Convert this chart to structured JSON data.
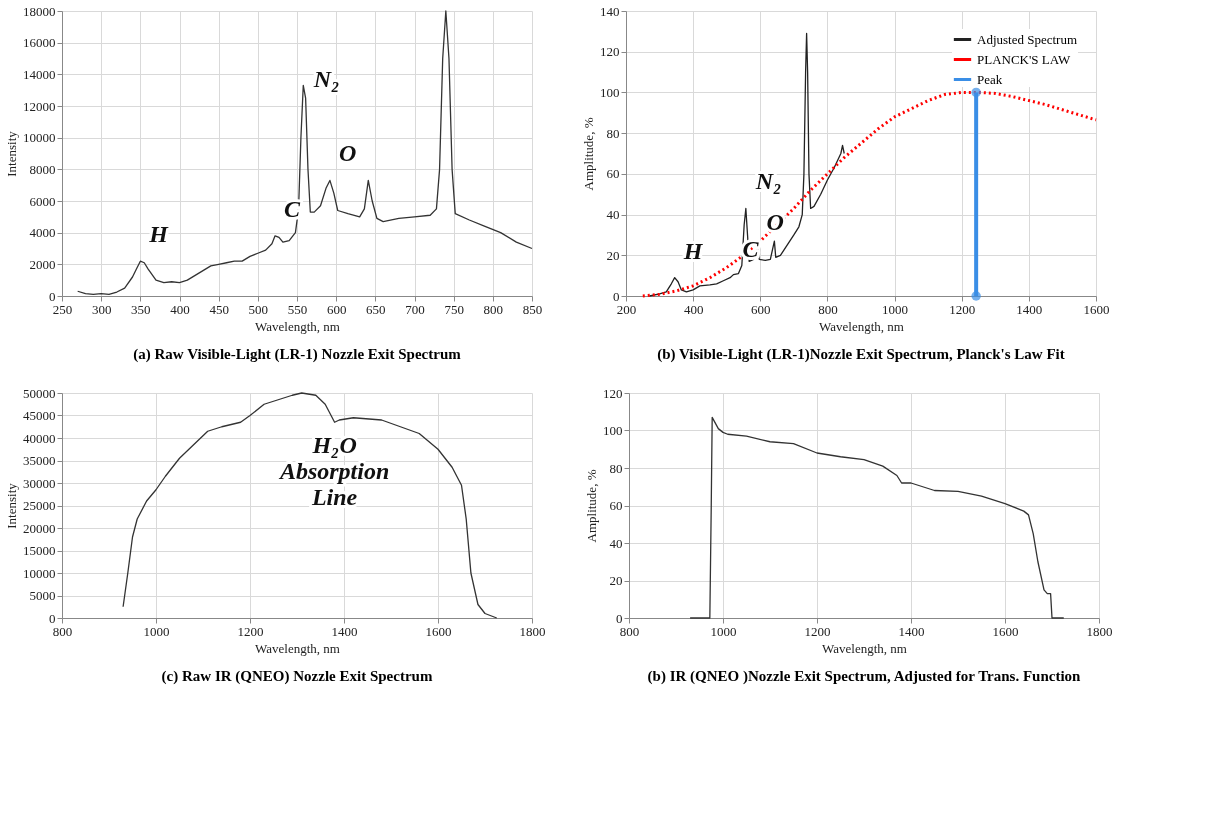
{
  "chart_data": [
    {
      "type": "line",
      "title": "(a) Raw Visible-Light (LR-1) Nozzle Exit Spectrum",
      "xlabel": "Wavelength, nm",
      "ylabel": "Intensity",
      "xlim": [
        250,
        850
      ],
      "xticks": [
        250,
        300,
        350,
        400,
        450,
        500,
        550,
        600,
        650,
        700,
        750,
        800,
        850
      ],
      "ylim": [
        0,
        18000
      ],
      "yticks": [
        0,
        2000,
        4000,
        6000,
        8000,
        10000,
        12000,
        14000,
        16000,
        18000
      ],
      "grid": true,
      "series": [
        {
          "color": "#333333",
          "x": [
            270,
            280,
            290,
            300,
            310,
            320,
            330,
            340,
            345,
            350,
            355,
            360,
            370,
            380,
            390,
            400,
            410,
            420,
            430,
            440,
            450,
            460,
            470,
            480,
            490,
            500,
            510,
            518,
            522,
            527,
            532,
            540,
            548,
            552,
            555,
            558,
            561,
            564,
            567,
            572,
            580,
            587,
            592,
            597,
            602,
            615,
            630,
            636,
            641,
            646,
            652,
            660,
            680,
            700,
            720,
            728,
            732,
            736,
            740,
            744,
            748,
            752,
            770,
            790,
            810,
            830,
            850
          ],
          "values": [
            300,
            150,
            100,
            150,
            100,
            250,
            500,
            1200,
            1700,
            2200,
            2100,
            1700,
            1000,
            850,
            900,
            850,
            1000,
            1300,
            1600,
            1900,
            2000,
            2100,
            2200,
            2200,
            2500,
            2700,
            2900,
            3300,
            3800,
            3700,
            3400,
            3500,
            4000,
            5500,
            10000,
            13300,
            12500,
            8000,
            5300,
            5300,
            5700,
            6800,
            7300,
            6500,
            5400,
            5200,
            5000,
            5500,
            7300,
            6000,
            4900,
            4700,
            4900,
            5000,
            5100,
            5500,
            8000,
            15000,
            18000,
            15000,
            8000,
            5200,
            4800,
            4400,
            4000,
            3400,
            3000
          ]
        }
      ],
      "annotations": [
        {
          "text": "H",
          "x": 350,
          "y": 2200
        },
        {
          "text": "C",
          "x": 522,
          "y": 3800
        },
        {
          "text": "O",
          "x": 592,
          "y": 7300
        },
        {
          "text": "N₂",
          "x": 560,
          "y": 12000
        }
      ]
    },
    {
      "type": "line",
      "title": "(b) Visible-Light (LR-1)Nozzle Exit Spectrum, Planck's Law Fit",
      "xlabel": "Wavelength, nm",
      "ylabel": "Amplitude, %",
      "xlim": [
        200,
        1600
      ],
      "xticks": [
        200,
        400,
        600,
        800,
        1000,
        1200,
        1400,
        1600
      ],
      "ylim": [
        0,
        140
      ],
      "yticks": [
        0,
        20,
        40,
        60,
        80,
        100,
        120,
        140
      ],
      "grid": true,
      "legend": "top right",
      "series": [
        {
          "name": "Adjusted Spectrum",
          "color": "#222222",
          "line_style": "solid",
          "x": [
            270,
            300,
            320,
            335,
            345,
            355,
            365,
            380,
            400,
            420,
            450,
            470,
            490,
            510,
            520,
            535,
            545,
            552,
            557,
            562,
            567,
            580,
            588,
            592,
            597,
            615,
            630,
            638,
            642,
            646,
            660,
            680,
            700,
            715,
            725,
            730,
            735,
            738,
            741,
            745,
            750,
            760,
            780,
            800,
            820,
            840,
            845,
            850
          ],
          "values": [
            0,
            1,
            2,
            6,
            9,
            7,
            3,
            2,
            3,
            5,
            5.5,
            6,
            7.5,
            9,
            10.5,
            11,
            15,
            35,
            43,
            30,
            17,
            18,
            22,
            23,
            18,
            17.5,
            18,
            24,
            27,
            19,
            20,
            25,
            30,
            34,
            40,
            60,
            110,
            129,
            110,
            60,
            43,
            44,
            50,
            57,
            63,
            70,
            74,
            70
          ]
        },
        {
          "name": "PLANCK'S LAW",
          "color": "#ff0000",
          "line_style": "dotted",
          "x": [
            250,
            300,
            350,
            400,
            450,
            500,
            550,
            600,
            650,
            700,
            750,
            800,
            850,
            900,
            950,
            1000,
            1050,
            1100,
            1150,
            1200,
            1250,
            1300,
            1350,
            1400,
            1450,
            1500,
            1550,
            1600
          ],
          "values": [
            0,
            0.8,
            2.5,
            5,
            9,
            14,
            20,
            27,
            35,
            43,
            52,
            60,
            68,
            75,
            82,
            88,
            92,
            96,
            99,
            100,
            100,
            99.5,
            98,
            96,
            94,
            91.5,
            89,
            86.5
          ]
        },
        {
          "name": "Peak",
          "color": "#3a8ee6",
          "line_style": "solid",
          "marker": "circle",
          "x": [
            1243,
            1243
          ],
          "values": [
            0,
            100
          ]
        }
      ],
      "annotations": [
        {
          "text": "H",
          "x": 345,
          "y": 9
        },
        {
          "text": "C",
          "x": 520,
          "y": 10
        },
        {
          "text": "O",
          "x": 592,
          "y": 23
        },
        {
          "text": "N₂",
          "x": 560,
          "y": 43
        }
      ]
    },
    {
      "type": "line",
      "title": "(c) Raw IR (QNEO) Nozzle Exit Spectrum",
      "xlabel": "Wavelength, nm",
      "ylabel": "Intensity",
      "xlim": [
        800,
        1800
      ],
      "xticks": [
        800,
        1000,
        1200,
        1400,
        1600,
        1800
      ],
      "ylim": [
        0,
        50000
      ],
      "yticks": [
        0,
        5000,
        10000,
        15000,
        20000,
        25000,
        30000,
        35000,
        40000,
        45000,
        50000
      ],
      "grid": true,
      "series": [
        {
          "color": "#333333",
          "x": [
            930,
            940,
            950,
            960,
            980,
            1000,
            1020,
            1050,
            1080,
            1110,
            1140,
            1180,
            1200,
            1230,
            1260,
            1290,
            1310,
            1340,
            1360,
            1375,
            1380,
            1390,
            1420,
            1480,
            1520,
            1560,
            1600,
            1630,
            1650,
            1660,
            1670,
            1685,
            1700,
            1725
          ],
          "values": [
            2500,
            10000,
            18000,
            22000,
            26000,
            28500,
            31500,
            35500,
            38500,
            41500,
            42500,
            43500,
            45000,
            47500,
            48500,
            49500,
            50000,
            49500,
            47500,
            44500,
            43500,
            44000,
            44500,
            44000,
            42500,
            41000,
            37500,
            33500,
            29500,
            22000,
            10000,
            3000,
            1000,
            0
          ]
        }
      ],
      "annotations": [
        {
          "text": "H₂O Absorption Line",
          "x": 1380,
          "y": 43500
        }
      ]
    },
    {
      "type": "line",
      "title": "(b) IR (QNEO )Nozzle Exit Spectrum, Adjusted for Trans. Function",
      "xlabel": "Wavelength, nm",
      "ylabel": "Amplitude, %",
      "xlim": [
        800,
        1800
      ],
      "xticks": [
        800,
        1000,
        1200,
        1400,
        1600,
        1800
      ],
      "ylim": [
        0,
        120
      ],
      "yticks": [
        0,
        20,
        40,
        60,
        80,
        100,
        120
      ],
      "grid": true,
      "series": [
        {
          "color": "#333333",
          "x": [
            930,
            972,
            975,
            977,
            990,
            1000,
            1010,
            1050,
            1100,
            1150,
            1200,
            1250,
            1300,
            1340,
            1370,
            1380,
            1400,
            1450,
            1500,
            1550,
            1600,
            1640,
            1650,
            1660,
            1670,
            1683,
            1690,
            1697,
            1700,
            1725
          ],
          "values": [
            0,
            0,
            60,
            107,
            101,
            99,
            98,
            97,
            94,
            93,
            88,
            86,
            84.5,
            81,
            76,
            72,
            72,
            68,
            67.5,
            65,
            61,
            57,
            55,
            45,
            30,
            15,
            13,
            13,
            0,
            0
          ]
        }
      ]
    }
  ]
}
